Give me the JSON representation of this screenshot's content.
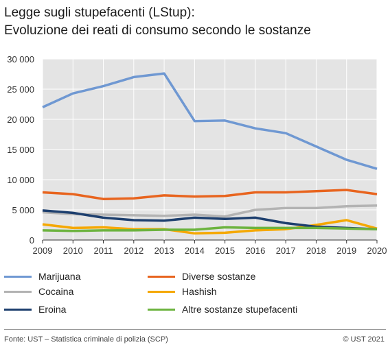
{
  "title": {
    "line1": "Legge sugli stupefacenti (LStup):",
    "line2": "Evoluzione dei reati di consumo secondo le sostanze"
  },
  "footer": {
    "source": "Fonte: UST – Statistica criminale di polizia (SCP)",
    "copyright": "© UST 2021"
  },
  "chart_data": {
    "type": "line",
    "title": "Legge sugli stupefacenti (LStup): Evoluzione dei reati di consumo secondo le sostanze",
    "xlabel": "",
    "ylabel": "",
    "x": [
      2009,
      2010,
      2011,
      2012,
      2013,
      2014,
      2015,
      2016,
      2017,
      2018,
      2019,
      2020
    ],
    "ylim": [
      0,
      30000
    ],
    "yticks": [
      0,
      5000,
      10000,
      15000,
      20000,
      25000,
      30000
    ],
    "ytick_labels": [
      "0",
      "5 000",
      "10 000",
      "15 000",
      "20 000",
      "25 000",
      "30 000"
    ],
    "grid": true,
    "plot_background": "#e4e4e4",
    "legend_position": "bottom",
    "series": [
      {
        "name": "Marijuana",
        "color": "#6f98d2",
        "values": [
          22000,
          24300,
          25500,
          27000,
          27600,
          19700,
          19800,
          18500,
          17700,
          15500,
          13300,
          11800
        ]
      },
      {
        "name": "Diverse sostanze",
        "color": "#e8641e",
        "values": [
          7900,
          7600,
          6800,
          6900,
          7400,
          7200,
          7300,
          7900,
          7900,
          8100,
          8300,
          7600
        ]
      },
      {
        "name": "Cocaina",
        "color": "#b3b3b3",
        "values": [
          4600,
          4300,
          4200,
          4100,
          4000,
          4200,
          3900,
          5000,
          5300,
          5300,
          5600,
          5700
        ]
      },
      {
        "name": "Hashish",
        "color": "#f5a800",
        "values": [
          2600,
          2000,
          2100,
          1800,
          1800,
          1100,
          1200,
          1600,
          1800,
          2500,
          3300,
          1900
        ]
      },
      {
        "name": "Eroina",
        "color": "#1d3f6e",
        "values": [
          4900,
          4500,
          3700,
          3300,
          3200,
          3700,
          3500,
          3700,
          2800,
          2200,
          2000,
          1800
        ]
      },
      {
        "name": "Altre sostanze stupefacenti",
        "color": "#6cb33f",
        "values": [
          1600,
          1500,
          1600,
          1600,
          1700,
          1700,
          2100,
          2000,
          2000,
          2000,
          1900,
          1800
        ]
      }
    ]
  }
}
